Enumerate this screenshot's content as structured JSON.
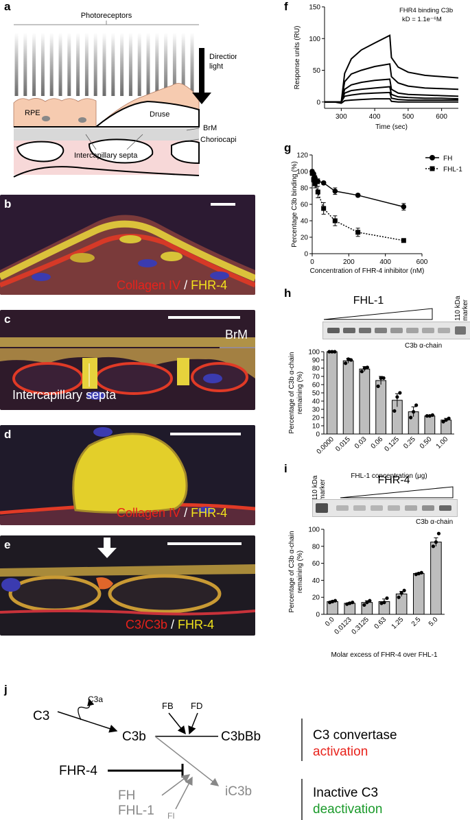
{
  "panels": {
    "a": {
      "label": "a",
      "photoreceptors": "Photoreceptors",
      "direction": [
        "Direction of",
        "light"
      ],
      "rpe": "RPE",
      "druse": "Druse",
      "brm": "BrM",
      "chorio": "Choriocapillaris",
      "septa": "Intercapillary septa"
    },
    "b": {
      "label": "b",
      "stain_red": "Collagen IV",
      "sep": " / ",
      "stain_yellow": "FHR-4"
    },
    "c": {
      "label": "c",
      "brm": "BrM",
      "septa": "Intercapillary septa"
    },
    "d": {
      "label": "d",
      "stain_red": "Collagen IV",
      "sep": " / ",
      "stain_yellow": "FHR-4"
    },
    "e": {
      "label": "e",
      "stain_red": "C3/C3b",
      "sep": " / ",
      "stain_yellow": "FHR-4"
    },
    "f": {
      "label": "f"
    },
    "g": {
      "label": "g"
    },
    "h": {
      "label": "h",
      "gel_title": "FHL-1",
      "marker": [
        "110 kDa",
        "marker"
      ],
      "band": "C3b α-chain"
    },
    "i": {
      "label": "i",
      "gel_title": "FHR-4",
      "marker": [
        "110 kDa",
        "marker"
      ],
      "band": "C3b α-chain"
    },
    "j": {
      "label": "j",
      "c3": "C3",
      "c3a": "C3a",
      "c3b": "C3b",
      "fb": "FB",
      "fd": "FD",
      "c3bbb": "C3bBb",
      "fhr4": "FHR-4",
      "fh": "FH",
      "fhl1": "FHL-1",
      "fi": "FI",
      "ic3b": "iC3b",
      "conv": "C3 convertase",
      "act": "activation",
      "inact": "Inactive C3",
      "deact": "deactivation",
      "red": "#e8221b",
      "green": "#1a9a2a"
    }
  },
  "chart_data": [
    {
      "id": "f",
      "type": "line",
      "title": "FHR4 binding C3b",
      "subtitle": "kD = 1.1e⁻⁶M",
      "xlabel": "Time (sec)",
      "ylabel": "Response units (RU)",
      "xlim": [
        250,
        650
      ],
      "ylim": [
        -10,
        150
      ],
      "xticks": [
        300,
        400,
        500,
        600
      ],
      "yticks": [
        0,
        50,
        100,
        150
      ],
      "series": [
        {
          "x": [
            250,
            280,
            300,
            310,
            330,
            360,
            400,
            445,
            450,
            470,
            500,
            550,
            600,
            650
          ],
          "values": [
            0,
            0,
            0,
            45,
            68,
            82,
            93,
            105,
            70,
            55,
            47,
            42,
            40,
            38
          ]
        },
        {
          "x": [
            250,
            280,
            300,
            310,
            330,
            360,
            400,
            445,
            450,
            470,
            500,
            550,
            600,
            650
          ],
          "values": [
            0,
            0,
            0,
            32,
            44,
            50,
            56,
            60,
            40,
            30,
            25,
            22,
            21,
            20
          ]
        },
        {
          "x": [
            250,
            280,
            300,
            310,
            330,
            360,
            400,
            445,
            450,
            470,
            500,
            550,
            600,
            650
          ],
          "values": [
            0,
            0,
            0,
            20,
            27,
            31,
            34,
            36,
            20,
            14,
            12,
            11,
            10,
            9
          ]
        },
        {
          "x": [
            250,
            280,
            300,
            310,
            330,
            360,
            400,
            445,
            450,
            470,
            500,
            550,
            600,
            650
          ],
          "values": [
            0,
            0,
            0,
            14,
            18,
            20,
            22,
            24,
            12,
            8,
            7,
            6,
            6,
            5
          ]
        },
        {
          "x": [
            250,
            280,
            300,
            310,
            330,
            360,
            400,
            445,
            450,
            470,
            500,
            550,
            600,
            650
          ],
          "values": [
            0,
            0,
            0,
            9,
            11,
            13,
            14,
            15,
            6,
            4,
            3,
            3,
            3,
            3
          ]
        },
        {
          "x": [
            250,
            280,
            300,
            310,
            330,
            360,
            400,
            445,
            450,
            470,
            500,
            550,
            600,
            650
          ],
          "values": [
            0,
            0,
            -2,
            2,
            3,
            4,
            5,
            5,
            1,
            0,
            0,
            0,
            0,
            0
          ]
        }
      ]
    },
    {
      "id": "g",
      "type": "line",
      "xlabel": "Concentration of FHR-4 inhibitor (nM)",
      "ylabel": "Percentage C3b binding (%)",
      "xlim": [
        0,
        600
      ],
      "ylim": [
        0,
        120
      ],
      "xticks": [
        0,
        200,
        400,
        600
      ],
      "yticks": [
        0,
        20,
        40,
        60,
        80,
        100,
        120
      ],
      "series": [
        {
          "name": "FH",
          "x": [
            0,
            7.8,
            15.6,
            31.2,
            62.5,
            125,
            250,
            500
          ],
          "values": [
            100,
            97,
            92,
            88,
            86,
            76,
            71,
            57
          ],
          "err": [
            2,
            2,
            3,
            3,
            2,
            4,
            2,
            4
          ]
        },
        {
          "name": "FHL-1",
          "x": [
            0,
            7.8,
            15.6,
            31.2,
            62.5,
            125,
            250,
            500
          ],
          "values": [
            98,
            90,
            85,
            75,
            55,
            40,
            26,
            16
          ],
          "err": [
            3,
            3,
            5,
            7,
            7,
            6,
            5,
            2
          ]
        }
      ]
    },
    {
      "id": "h",
      "type": "bar",
      "xlabel": "FHL-1 concentration (μg)",
      "ylabel": "Percentage of C3b α-chain remaining (%)",
      "categories": [
        "0.0000",
        "0.015",
        "0.03",
        "0.06",
        "0.125",
        "0.25",
        "0.50",
        "1.00"
      ],
      "values": [
        100,
        89,
        79,
        65,
        41,
        27,
        22,
        17
      ],
      "err": [
        1,
        3,
        3,
        5,
        8,
        6,
        1,
        2
      ],
      "points": [
        [
          100,
          100,
          100
        ],
        [
          86,
          91,
          90
        ],
        [
          76,
          80,
          81
        ],
        [
          58,
          68,
          68
        ],
        [
          28,
          45,
          50
        ],
        [
          20,
          27,
          35
        ],
        [
          22,
          22,
          23
        ],
        [
          15,
          17,
          19
        ]
      ],
      "ylim": [
        0,
        100
      ],
      "yticks": [
        0,
        10,
        20,
        30,
        40,
        50,
        60,
        70,
        80,
        90,
        100
      ]
    },
    {
      "id": "i",
      "type": "bar",
      "xlabel": "Molar excess of FHR-4 over FHL-1",
      "ylabel": "Percentage of C3b α-chain remaining (%)",
      "categories": [
        "0.0",
        "0.0123",
        "0.3125",
        "0.63",
        "1.25",
        "2.5",
        "5.0"
      ],
      "values": [
        15,
        13,
        14,
        15,
        24,
        48,
        85
      ],
      "err": [
        1,
        1,
        2,
        3,
        3,
        1,
        5
      ],
      "points": [
        [
          14,
          15,
          16
        ],
        [
          12,
          13,
          14
        ],
        [
          11,
          14,
          16
        ],
        [
          13,
          14,
          19
        ],
        [
          20,
          25,
          28
        ],
        [
          47,
          48,
          49
        ],
        [
          80,
          85,
          95
        ]
      ],
      "ylim": [
        0,
        100
      ],
      "yticks": [
        0,
        20,
        40,
        60,
        80,
        100
      ]
    }
  ]
}
